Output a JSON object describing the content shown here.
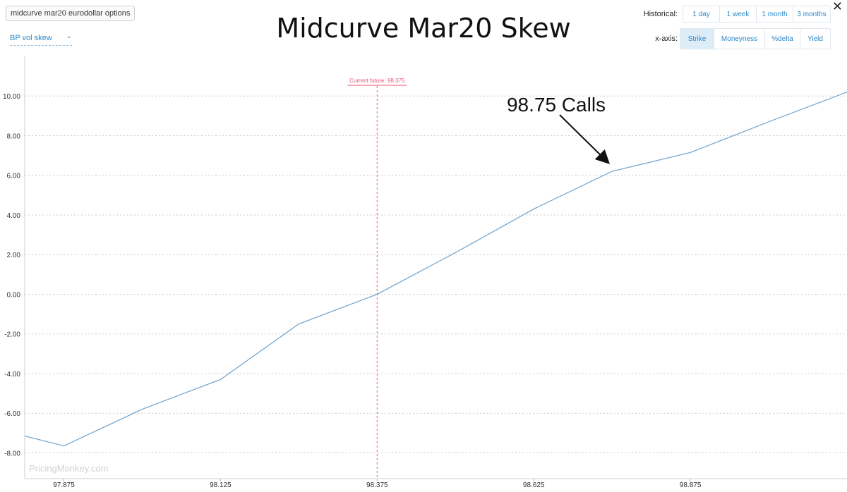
{
  "header": {
    "product_label": "midcurve mar20 eurodollar options",
    "metric_select": "BP vol skew",
    "title": "Midcurve Mar20 Skew",
    "close_glyph": "✕"
  },
  "controls": {
    "historical_label": "Historical:",
    "historical_options": [
      "1 day",
      "1 week",
      "1 month",
      "3 months"
    ],
    "xaxis_label": "x-axis:",
    "xaxis_options": [
      "Strike",
      "Moneyness",
      "%delta",
      "Yield"
    ],
    "xaxis_active": "Strike"
  },
  "chart_data": {
    "type": "line",
    "x": [
      97.75,
      97.875,
      98.0,
      98.125,
      98.25,
      98.375,
      98.5,
      98.625,
      98.75,
      98.875,
      99.0
    ],
    "y": [
      -7.15,
      -7.65,
      -5.8,
      -4.3,
      -1.5,
      0.0,
      2.1,
      4.3,
      6.2,
      7.15,
      8.7
    ],
    "x_last": 99.125,
    "y_last": 10.2,
    "xlim": [
      97.8125,
      99.125
    ],
    "ylim": [
      -9.3,
      12.0
    ],
    "x_ticks": [
      "97.875",
      "98.125",
      "98.375",
      "98.625",
      "98.875"
    ],
    "y_ticks": [
      "10.00",
      "8.00",
      "6.00",
      "4.00",
      "2.00",
      "0.00",
      "-2.00",
      "-4.00",
      "-6.00",
      "-8.00"
    ],
    "current_future_label": "Current future: 98.375",
    "current_future_value": 98.375,
    "annotation_text": "98.75 Calls",
    "annotation_target": {
      "x": 98.75,
      "y": 6.2
    },
    "watermark": "PricingMonkey.com",
    "grid": true,
    "line_color": "#7aa8cf",
    "current_future_color": "#e8537a"
  }
}
